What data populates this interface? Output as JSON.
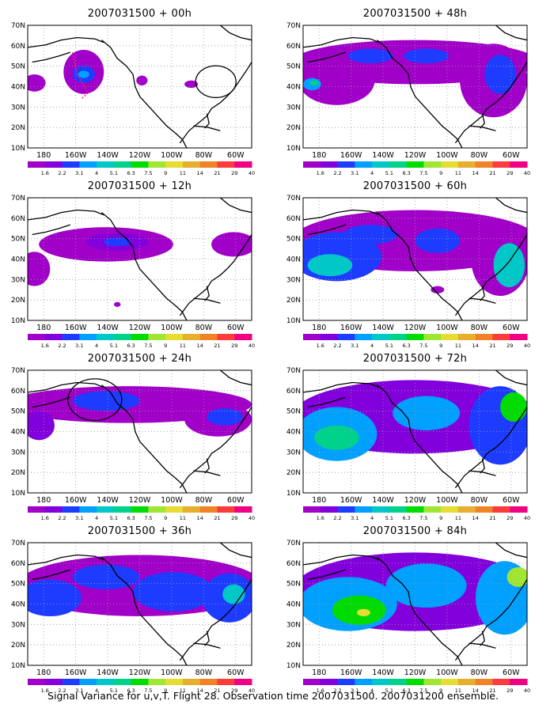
{
  "panels": [
    {
      "title": "2007031500 + 00h"
    },
    {
      "title": "2007031500 + 48h"
    },
    {
      "title": "2007031500 + 12h"
    },
    {
      "title": "2007031500 + 60h"
    },
    {
      "title": "2007031500 + 24h"
    },
    {
      "title": "2007031500 + 72h"
    },
    {
      "title": "2007031500 + 36h"
    },
    {
      "title": "2007031500 + 84h"
    }
  ],
  "axes": {
    "x_ticks": [
      "180",
      "160W",
      "140W",
      "120W",
      "100W",
      "80W",
      "60W"
    ],
    "y_ticks": [
      "10N",
      "20N",
      "30N",
      "40N",
      "50N",
      "60N",
      "70N"
    ]
  },
  "colorbar": {
    "labels": [
      "1.6",
      "2.2",
      "3.1",
      "4",
      "5.1",
      "6.3",
      "7.5",
      "9",
      "11",
      "14",
      "21",
      "29",
      "40"
    ],
    "colors": [
      "#a000c8",
      "#8200dc",
      "#1e3cff",
      "#00a0ff",
      "#00c8c8",
      "#00d28c",
      "#00dc00",
      "#a0e632",
      "#e6dc32",
      "#e6af2d",
      "#f08228",
      "#fa3c3c",
      "#f00082"
    ]
  },
  "caption": "Signal Variance for u,v,T. Flight 28. Observation time 2007031500. 2007031200 ensemble."
}
